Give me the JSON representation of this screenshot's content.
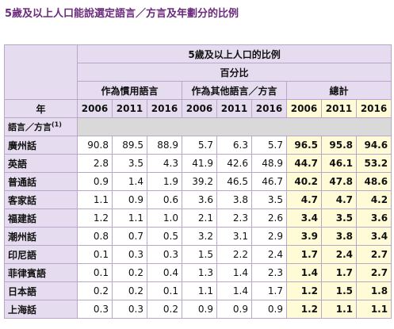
{
  "page_title": "5歲及以上人口能說選定語言／方言及年劃分的比例",
  "table": {
    "header_main": "5歲及以上人口的比例",
    "header_sub": "百分比",
    "group_usual": "作為慣用語言",
    "group_other": "作為其他語言／方言",
    "group_total": "總計",
    "year_label": "年",
    "lang_label": "語言／方言",
    "lang_label_note": "(1)",
    "years": [
      "2006",
      "2011",
      "2016"
    ],
    "rows": [
      {
        "lang": "廣州話",
        "usual": [
          "90.8",
          "89.5",
          "88.9"
        ],
        "other": [
          "5.7",
          "6.3",
          "5.7"
        ],
        "total": [
          "96.5",
          "95.8",
          "94.6"
        ]
      },
      {
        "lang": "英語",
        "usual": [
          "2.8",
          "3.5",
          "4.3"
        ],
        "other": [
          "41.9",
          "42.6",
          "48.9"
        ],
        "total": [
          "44.7",
          "46.1",
          "53.2"
        ]
      },
      {
        "lang": "普通話",
        "usual": [
          "0.9",
          "1.4",
          "1.9"
        ],
        "other": [
          "39.2",
          "46.5",
          "46.7"
        ],
        "total": [
          "40.2",
          "47.8",
          "48.6"
        ]
      },
      {
        "lang": "客家話",
        "usual": [
          "1.1",
          "0.9",
          "0.6"
        ],
        "other": [
          "3.6",
          "3.8",
          "3.5"
        ],
        "total": [
          "4.7",
          "4.7",
          "4.2"
        ]
      },
      {
        "lang": "福建話",
        "usual": [
          "1.2",
          "1.1",
          "1.0"
        ],
        "other": [
          "2.1",
          "2.3",
          "2.6"
        ],
        "total": [
          "3.4",
          "3.5",
          "3.6"
        ]
      },
      {
        "lang": "潮州話",
        "usual": [
          "0.8",
          "0.7",
          "0.5"
        ],
        "other": [
          "3.2",
          "3.1",
          "2.9"
        ],
        "total": [
          "3.9",
          "3.8",
          "3.4"
        ]
      },
      {
        "lang": "印尼語",
        "usual": [
          "0.1",
          "0.3",
          "0.3"
        ],
        "other": [
          "1.5",
          "2.2",
          "2.4"
        ],
        "total": [
          "1.7",
          "2.4",
          "2.7"
        ]
      },
      {
        "lang": "菲律賓語",
        "usual": [
          "0.1",
          "0.2",
          "0.4"
        ],
        "other": [
          "1.3",
          "1.4",
          "2.3"
        ],
        "total": [
          "1.4",
          "1.7",
          "2.7"
        ]
      },
      {
        "lang": "日本語",
        "usual": [
          "0.2",
          "0.2",
          "0.1"
        ],
        "other": [
          "1.1",
          "1.4",
          "1.7"
        ],
        "total": [
          "1.2",
          "1.5",
          "1.8"
        ]
      },
      {
        "lang": "上海話",
        "usual": [
          "0.3",
          "0.3",
          "0.2"
        ],
        "other": [
          "0.9",
          "0.9",
          "0.9"
        ],
        "total": [
          "1.2",
          "1.1",
          "1.1"
        ]
      }
    ]
  }
}
